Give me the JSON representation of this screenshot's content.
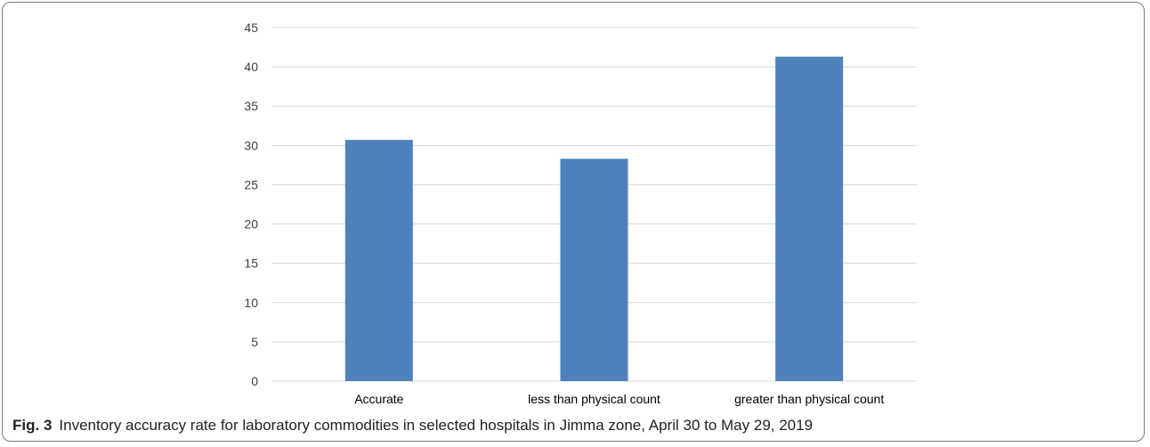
{
  "chart_data": {
    "type": "bar",
    "categories": [
      "Accurate",
      "less than physical count",
      "greater than physical count"
    ],
    "values": [
      30.7,
      28.3,
      41.3
    ],
    "ylim": [
      0,
      45
    ],
    "yticks": [
      0,
      5,
      10,
      15,
      20,
      25,
      30,
      35,
      40,
      45
    ],
    "grid": true,
    "bar_color": "#4f81bd",
    "grid_color": "#d9d9d9"
  },
  "caption": {
    "label": "Fig. 3",
    "text": "Inventory accuracy rate for laboratory commodities in selected hospitals in Jimma zone, April 30 to May 29, 2019"
  }
}
